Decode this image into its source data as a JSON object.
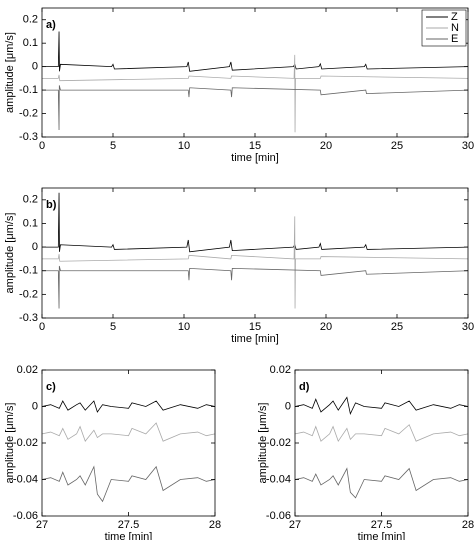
{
  "chart_data": [
    {
      "type": "line",
      "label": "a)",
      "xlabel": "time [min]",
      "ylabel": "amplitude [μm/s]",
      "xlim": [
        0,
        30
      ],
      "ylim": [
        -0.3,
        0.25
      ],
      "xticks": [
        0,
        5,
        10,
        15,
        20,
        25,
        30
      ],
      "yticks": [
        -0.3,
        -0.2,
        -0.1,
        0,
        0.1,
        0.2
      ],
      "legend": "upper right",
      "series": [
        {
          "name": "Z",
          "color": "#000000",
          "x": [
            0,
            1.15,
            1.2,
            1.23,
            1.3,
            4.9,
            5,
            5.1,
            10.2,
            10.3,
            10.4,
            13.2,
            13.3,
            13.4,
            17.7,
            17.8,
            17.9,
            19.5,
            19.6,
            19.7,
            22.7,
            22.8,
            22.9,
            30
          ],
          "values": [
            0,
            0,
            0.15,
            -0.02,
            0.01,
            0,
            0.01,
            -0.01,
            0,
            0.02,
            -0.02,
            0,
            0.02,
            -0.015,
            0,
            0.01,
            -0.01,
            0,
            0.012,
            -0.01,
            0,
            0.01,
            -0.01,
            0
          ]
        },
        {
          "name": "N",
          "color": "#aaaaaa",
          "x": [
            0,
            1.15,
            1.2,
            1.25,
            10.3,
            10.35,
            13.3,
            13.35,
            17.75,
            17.8,
            17.82,
            17.85,
            19.6,
            19.65,
            30
          ],
          "values": [
            -0.05,
            -0.05,
            -0.035,
            -0.06,
            -0.05,
            -0.04,
            -0.05,
            -0.04,
            -0.05,
            0.05,
            -0.28,
            -0.05,
            -0.05,
            -0.04,
            -0.05
          ]
        },
        {
          "name": "E",
          "color": "#666666",
          "x": [
            0,
            1.15,
            1.2,
            1.22,
            1.3,
            10.3,
            10.35,
            10.4,
            13.3,
            13.35,
            13.4,
            19.6,
            19.65,
            22.8,
            22.85,
            30
          ],
          "values": [
            -0.1,
            -0.1,
            -0.27,
            -0.08,
            -0.1,
            -0.1,
            -0.13,
            -0.09,
            -0.1,
            -0.13,
            -0.09,
            -0.1,
            -0.12,
            -0.1,
            -0.115,
            -0.1
          ]
        }
      ]
    },
    {
      "type": "line",
      "label": "b)",
      "xlabel": "time [min]",
      "ylabel": "amplitude [μm/s]",
      "xlim": [
        0,
        30
      ],
      "ylim": [
        -0.3,
        0.25
      ],
      "xticks": [
        0,
        5,
        10,
        15,
        20,
        25,
        30
      ],
      "yticks": [
        -0.3,
        -0.2,
        -0.1,
        0,
        0.1,
        0.2
      ],
      "series": [
        {
          "color": "#000000",
          "x": [
            0,
            1.15,
            1.2,
            1.23,
            1.3,
            4.9,
            5,
            5.1,
            10.2,
            10.3,
            10.4,
            13.2,
            13.3,
            13.4,
            17.7,
            17.8,
            17.9,
            19.5,
            19.6,
            19.7,
            22.7,
            22.8,
            22.9,
            30
          ],
          "values": [
            0,
            0,
            0.23,
            -0.02,
            0.01,
            0,
            0.01,
            -0.01,
            0,
            0.03,
            -0.02,
            0,
            0.03,
            -0.015,
            0,
            0.01,
            -0.01,
            0,
            0.015,
            -0.01,
            0,
            0.01,
            -0.01,
            0
          ]
        },
        {
          "color": "#aaaaaa",
          "x": [
            0,
            1.15,
            1.2,
            1.25,
            10.3,
            10.35,
            13.3,
            13.35,
            17.75,
            17.8,
            17.82,
            17.85,
            19.6,
            19.65,
            30
          ],
          "values": [
            -0.05,
            -0.05,
            -0.03,
            -0.06,
            -0.05,
            -0.035,
            -0.05,
            -0.035,
            -0.05,
            0.13,
            -0.26,
            -0.05,
            -0.05,
            -0.04,
            -0.05
          ]
        },
        {
          "color": "#666666",
          "x": [
            0,
            1.15,
            1.2,
            1.22,
            1.3,
            10.3,
            10.35,
            10.4,
            13.3,
            13.35,
            13.4,
            19.6,
            19.65,
            22.8,
            22.85,
            30
          ],
          "values": [
            -0.1,
            -0.1,
            -0.26,
            -0.08,
            -0.1,
            -0.1,
            -0.14,
            -0.09,
            -0.1,
            -0.14,
            -0.09,
            -0.1,
            -0.12,
            -0.1,
            -0.115,
            -0.1
          ]
        }
      ]
    },
    {
      "type": "line",
      "label": "c)",
      "xlabel": "time [min]",
      "ylabel": "amplitude [μm/s]",
      "xlim": [
        27,
        28
      ],
      "ylim": [
        -0.06,
        0.02
      ],
      "xticks": [
        27,
        27.5,
        28
      ],
      "yticks": [
        -0.06,
        -0.04,
        -0.02,
        0,
        0.02
      ],
      "series": [
        {
          "color": "#000000",
          "x": [
            27,
            27.05,
            27.1,
            27.12,
            27.15,
            27.2,
            27.22,
            27.25,
            27.3,
            27.32,
            27.35,
            27.4,
            27.5,
            27.52,
            27.6,
            27.66,
            27.7,
            27.8,
            27.9,
            27.95,
            28
          ],
          "values": [
            0,
            0.001,
            -0.001,
            0.003,
            -0.002,
            0.001,
            0.002,
            -0.002,
            0.003,
            -0.003,
            0.001,
            0,
            -0.001,
            0.002,
            0,
            0.003,
            -0.002,
            0.001,
            -0.001,
            0.001,
            0
          ]
        },
        {
          "color": "#aaaaaa",
          "x": [
            27,
            27.05,
            27.1,
            27.12,
            27.15,
            27.2,
            27.22,
            27.25,
            27.3,
            27.32,
            27.35,
            27.4,
            27.5,
            27.52,
            27.6,
            27.66,
            27.7,
            27.8,
            27.9,
            27.95,
            28
          ],
          "values": [
            -0.015,
            -0.014,
            -0.016,
            -0.012,
            -0.018,
            -0.015,
            -0.011,
            -0.019,
            -0.013,
            -0.017,
            -0.015,
            -0.015,
            -0.016,
            -0.012,
            -0.015,
            -0.009,
            -0.019,
            -0.015,
            -0.014,
            -0.016,
            -0.015
          ]
        },
        {
          "color": "#666666",
          "x": [
            27,
            27.05,
            27.1,
            27.12,
            27.15,
            27.2,
            27.22,
            27.25,
            27.3,
            27.32,
            27.35,
            27.4,
            27.5,
            27.52,
            27.6,
            27.66,
            27.7,
            27.8,
            27.9,
            27.95,
            28
          ],
          "values": [
            -0.04,
            -0.039,
            -0.041,
            -0.036,
            -0.043,
            -0.04,
            -0.038,
            -0.043,
            -0.033,
            -0.048,
            -0.052,
            -0.04,
            -0.041,
            -0.038,
            -0.04,
            -0.033,
            -0.046,
            -0.04,
            -0.039,
            -0.041,
            -0.04
          ]
        }
      ]
    },
    {
      "type": "line",
      "label": "d)",
      "xlabel": "time [min]",
      "ylabel": "amplitude [μm/s]",
      "xlim": [
        27,
        28
      ],
      "ylim": [
        -0.06,
        0.02
      ],
      "xticks": [
        27,
        27.5,
        28
      ],
      "yticks": [
        -0.06,
        -0.04,
        -0.02,
        0,
        0.02
      ],
      "series": [
        {
          "color": "#000000",
          "x": [
            27,
            27.05,
            27.1,
            27.12,
            27.15,
            27.2,
            27.22,
            27.25,
            27.3,
            27.32,
            27.35,
            27.4,
            27.5,
            27.52,
            27.6,
            27.66,
            27.7,
            27.8,
            27.9,
            27.95,
            28
          ],
          "values": [
            0,
            0.001,
            -0.001,
            0.004,
            -0.003,
            0.001,
            0.003,
            -0.002,
            0.005,
            -0.004,
            0.002,
            0,
            -0.001,
            0.002,
            0,
            0.003,
            -0.002,
            0.001,
            -0.001,
            0.001,
            0
          ]
        },
        {
          "color": "#aaaaaa",
          "x": [
            27,
            27.05,
            27.1,
            27.12,
            27.15,
            27.2,
            27.22,
            27.25,
            27.3,
            27.32,
            27.35,
            27.4,
            27.5,
            27.52,
            27.6,
            27.66,
            27.7,
            27.8,
            27.9,
            27.95,
            28
          ],
          "values": [
            -0.015,
            -0.014,
            -0.016,
            -0.011,
            -0.019,
            -0.015,
            -0.011,
            -0.019,
            -0.012,
            -0.018,
            -0.015,
            -0.015,
            -0.016,
            -0.012,
            -0.015,
            -0.01,
            -0.019,
            -0.015,
            -0.014,
            -0.016,
            -0.015
          ]
        },
        {
          "color": "#666666",
          "x": [
            27,
            27.05,
            27.1,
            27.12,
            27.15,
            27.2,
            27.22,
            27.25,
            27.3,
            27.32,
            27.35,
            27.4,
            27.5,
            27.52,
            27.6,
            27.66,
            27.7,
            27.8,
            27.9,
            27.95,
            28
          ],
          "values": [
            -0.04,
            -0.039,
            -0.041,
            -0.037,
            -0.043,
            -0.04,
            -0.038,
            -0.043,
            -0.034,
            -0.047,
            -0.05,
            -0.04,
            -0.041,
            -0.038,
            -0.04,
            -0.034,
            -0.046,
            -0.04,
            -0.039,
            -0.041,
            -0.04
          ]
        }
      ]
    }
  ]
}
